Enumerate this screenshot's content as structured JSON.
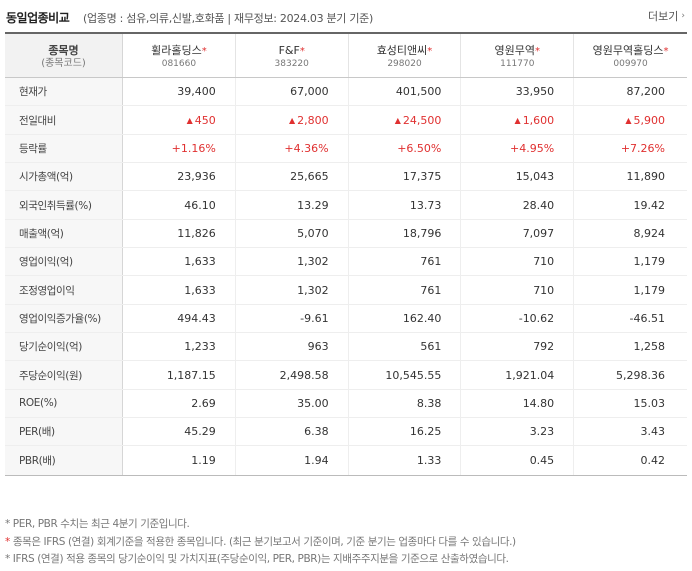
{
  "header": {
    "title": "동일업종비교",
    "meta": "(업종명 : 섬유,의류,신발,호화품 | 재무정보: 2024.03 분기 기준)",
    "more_label": "더보기",
    "more_icon": "chevron-right"
  },
  "table": {
    "corner_label": "종목명",
    "corner_sub": "(종목코드)",
    "companies": [
      {
        "name": "휠라홀딩스",
        "code": "081660",
        "ifrs": true
      },
      {
        "name": "F&F",
        "code": "383220",
        "ifrs": true
      },
      {
        "name": "효성티앤씨",
        "code": "298020",
        "ifrs": true
      },
      {
        "name": "영원무역",
        "code": "111770",
        "ifrs": true
      },
      {
        "name": "영원무역홀딩스",
        "code": "009970",
        "ifrs": true
      }
    ],
    "rows": [
      {
        "label": "현재가",
        "values": [
          "39,400",
          "67,000",
          "401,500",
          "33,950",
          "87,200"
        ]
      },
      {
        "label": "전일대비",
        "values": [
          "450",
          "2,800",
          "24,500",
          "1,600",
          "5,900"
        ],
        "up": true,
        "arrow": "▲"
      },
      {
        "label": "등락률",
        "values": [
          "+1.16%",
          "+4.36%",
          "+6.50%",
          "+4.95%",
          "+7.26%"
        ],
        "up": true
      },
      {
        "label": "시가총액(억)",
        "values": [
          "23,936",
          "25,665",
          "17,375",
          "15,043",
          "11,890"
        ]
      },
      {
        "label": "외국인취득률(%)",
        "values": [
          "46.10",
          "13.29",
          "13.73",
          "28.40",
          "19.42"
        ]
      },
      {
        "label": "매출액(억)",
        "values": [
          "11,826",
          "5,070",
          "18,796",
          "7,097",
          "8,924"
        ]
      },
      {
        "label": "영업이익(억)",
        "values": [
          "1,633",
          "1,302",
          "761",
          "710",
          "1,179"
        ]
      },
      {
        "label": "조정영업이익",
        "values": [
          "1,633",
          "1,302",
          "761",
          "710",
          "1,179"
        ]
      },
      {
        "label": "영업이익증가율(%)",
        "values": [
          "494.43",
          "-9.61",
          "162.40",
          "-10.62",
          "-46.51"
        ]
      },
      {
        "label": "당기순이익(억)",
        "values": [
          "1,233",
          "963",
          "561",
          "792",
          "1,258"
        ]
      },
      {
        "label": "주당순이익(원)",
        "values": [
          "1,187.15",
          "2,498.58",
          "10,545.55",
          "1,921.04",
          "5,298.36"
        ]
      },
      {
        "label": "ROE(%)",
        "values": [
          "2.69",
          "35.00",
          "8.38",
          "14.80",
          "15.03"
        ]
      },
      {
        "label": "PER(배)",
        "values": [
          "45.29",
          "6.38",
          "16.25",
          "3.23",
          "3.43"
        ]
      },
      {
        "label": "PBR(배)",
        "values": [
          "1.19",
          "1.94",
          "1.33",
          "0.45",
          "0.42"
        ]
      }
    ]
  },
  "notes": {
    "n1": "* PER, PBR 수치는 최근 4분기 기준입니다.",
    "n2_star": "*",
    "n2": "종목은 IFRS (연결) 회계기준을 적용한 종목입니다. (최근 분기보고서 기준이며, 기준 분기는 업종마다 다를 수 있습니다.)",
    "n3": "* IFRS (연결) 적용 종목의 당기순이익 및 가치지표(주당순이익, PER, PBR)는 지배주주지분을 기준으로 산출하였습니다."
  },
  "colors": {
    "up": "#e03030",
    "header_bg": "#f2f2f2",
    "label_bg": "#f7f7f7"
  }
}
